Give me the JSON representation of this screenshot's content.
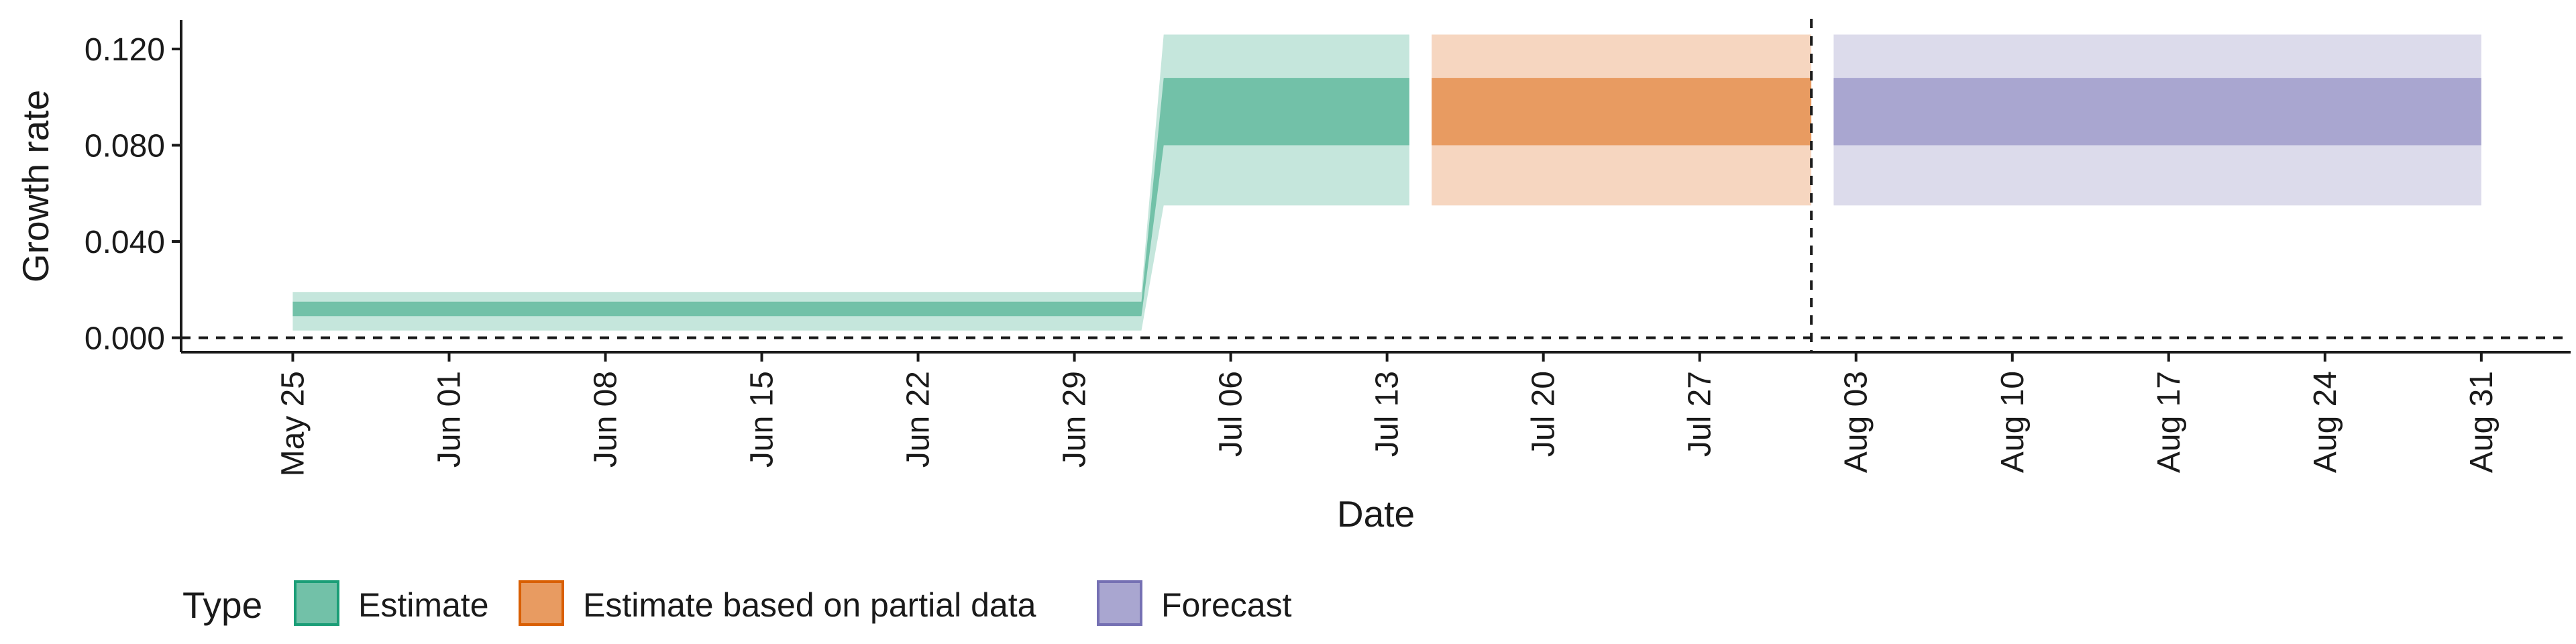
{
  "chart_data": {
    "type": "area",
    "xlabel": "Date",
    "ylabel": "Growth rate",
    "x_range": [
      "2020-05-20",
      "2020-09-04"
    ],
    "ylim": [
      -0.006,
      0.132
    ],
    "y_ticks": [
      {
        "value": 0.0,
        "label": "0.000"
      },
      {
        "value": 0.04,
        "label": "0.040"
      },
      {
        "value": 0.08,
        "label": "0.080"
      },
      {
        "value": 0.12,
        "label": "0.120"
      }
    ],
    "x_ticks": [
      {
        "date": "2020-05-25",
        "label": "May 25"
      },
      {
        "date": "2020-06-01",
        "label": "Jun 01"
      },
      {
        "date": "2020-06-08",
        "label": "Jun 08"
      },
      {
        "date": "2020-06-15",
        "label": "Jun 15"
      },
      {
        "date": "2020-06-22",
        "label": "Jun 22"
      },
      {
        "date": "2020-06-29",
        "label": "Jun 29"
      },
      {
        "date": "2020-07-06",
        "label": "Jul 06"
      },
      {
        "date": "2020-07-13",
        "label": "Jul 13"
      },
      {
        "date": "2020-07-20",
        "label": "Jul 20"
      },
      {
        "date": "2020-07-27",
        "label": "Jul 27"
      },
      {
        "date": "2020-08-03",
        "label": "Aug 03"
      },
      {
        "date": "2020-08-10",
        "label": "Aug 10"
      },
      {
        "date": "2020-08-17",
        "label": "Aug 17"
      },
      {
        "date": "2020-08-24",
        "label": "Aug 24"
      },
      {
        "date": "2020-08-31",
        "label": "Aug 31"
      }
    ],
    "reference_lines": [
      {
        "axis": "y",
        "value": 0.0,
        "style": "dashed"
      },
      {
        "axis": "x",
        "date": "2020-08-01",
        "style": "dashed"
      }
    ],
    "legend": {
      "title": "Type",
      "position": "bottom",
      "entries": [
        {
          "label": "Estimate",
          "fill": "#72c1a8",
          "stroke": "#1b9e77"
        },
        {
          "label": "Estimate based on partial data",
          "fill": "#e89b61",
          "stroke": "#d95f02"
        },
        {
          "label": "Forecast",
          "fill": "#a9a6d0",
          "stroke": "#7570b3"
        }
      ]
    },
    "series": [
      {
        "name": "Estimate",
        "inner_color": "#72c1a8",
        "outer_color": "#c5e6dc",
        "points": [
          {
            "date": "2020-05-25",
            "outer": [
              0.003,
              0.019
            ],
            "inner": [
              0.009,
              0.015
            ]
          },
          {
            "date": "2020-07-02",
            "outer": [
              0.003,
              0.019
            ],
            "inner": [
              0.009,
              0.015
            ]
          },
          {
            "date": "2020-07-03",
            "outer": [
              0.055,
              0.126
            ],
            "inner": [
              0.08,
              0.108
            ]
          },
          {
            "date": "2020-07-14",
            "outer": [
              0.055,
              0.126
            ],
            "inner": [
              0.08,
              0.108
            ]
          }
        ]
      },
      {
        "name": "Estimate based on partial data",
        "inner_color": "#e89b61",
        "outer_color": "#f6d6c0",
        "points": [
          {
            "date": "2020-07-15",
            "outer": [
              0.055,
              0.126
            ],
            "inner": [
              0.08,
              0.108
            ]
          },
          {
            "date": "2020-08-01",
            "outer": [
              0.055,
              0.126
            ],
            "inner": [
              0.08,
              0.108
            ]
          }
        ]
      },
      {
        "name": "Forecast",
        "inner_color": "#a9a6d0",
        "outer_color": "#dcdbeb",
        "points": [
          {
            "date": "2020-08-02",
            "outer": [
              0.055,
              0.126
            ],
            "inner": [
              0.08,
              0.108
            ]
          },
          {
            "date": "2020-08-31",
            "outer": [
              0.055,
              0.126
            ],
            "inner": [
              0.08,
              0.108
            ]
          }
        ]
      }
    ]
  }
}
